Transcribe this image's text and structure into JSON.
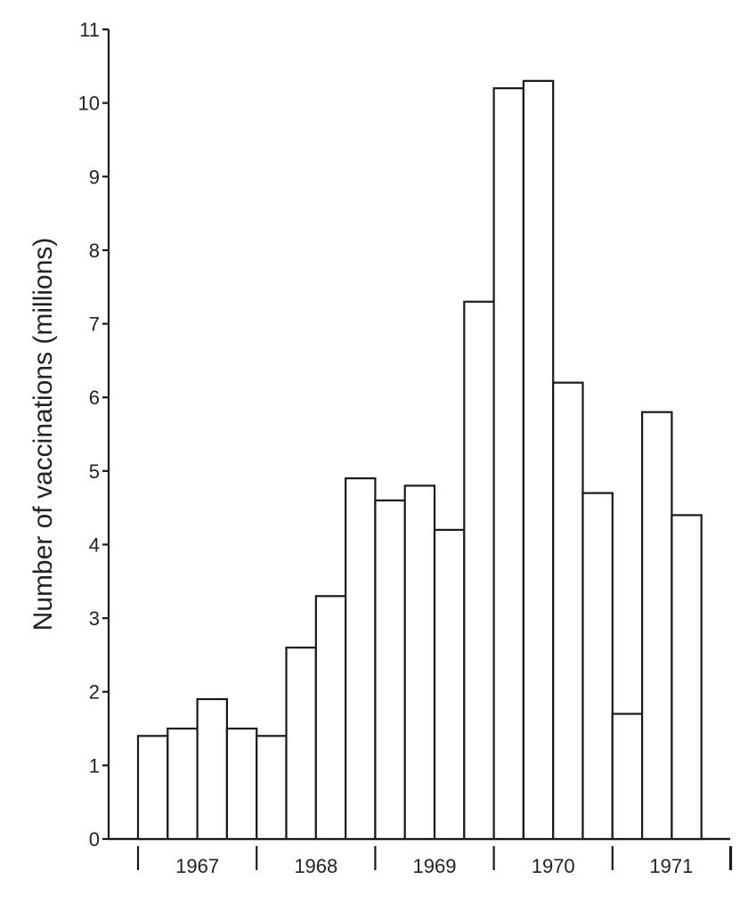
{
  "chart_data": {
    "type": "bar",
    "title": "",
    "xlabel": "",
    "ylabel": "Number of vaccinations (millions)",
    "ylim": [
      0,
      11
    ],
    "yticks": [
      "0",
      "1",
      "2",
      "3",
      "4",
      "5",
      "6",
      "7",
      "8",
      "9",
      "10",
      "11"
    ],
    "grid": false,
    "years": [
      "1967",
      "1968",
      "1969",
      "1970",
      "1971"
    ],
    "periods_per_year": 4,
    "values": [
      1.4,
      1.5,
      1.9,
      1.5,
      1.4,
      2.6,
      3.3,
      4.9,
      4.6,
      4.8,
      4.2,
      7.3,
      10.2,
      10.3,
      6.2,
      4.7,
      1.7,
      5.8,
      4.4
    ]
  }
}
